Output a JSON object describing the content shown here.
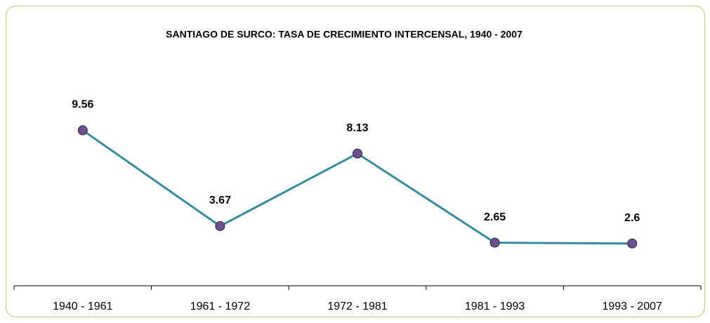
{
  "chart_data": {
    "type": "line",
    "title": "SANTIAGO DE SURCO: TASA DE CRECIMIENTO INTERCENSAL, 1940 - 2007",
    "categories": [
      "1940 - 1961",
      "1961 - 1972",
      "1972 - 1981",
      "1981 - 1993",
      "1993 - 2007"
    ],
    "series": [
      {
        "color": "#3a8c9c",
        "marker_color": "#6b4f8f",
        "values": [
          9.56,
          3.67,
          8.13,
          2.65,
          2.6
        ]
      }
    ],
    "ylim": [
      0,
      12
    ]
  }
}
